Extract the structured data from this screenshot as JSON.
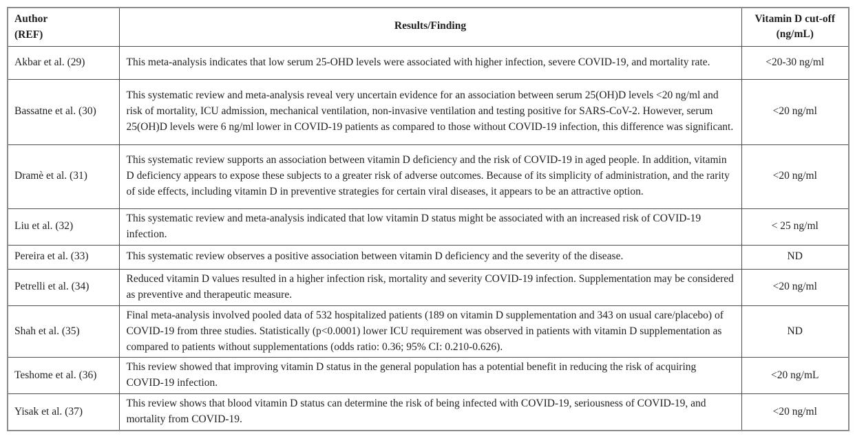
{
  "table": {
    "header": {
      "author_line1": "Author",
      "author_line2": "(REF)",
      "results": "Results/Finding",
      "cutoff_line1": "Vitamin D cut-off",
      "cutoff_line2": "(ng/mL)"
    },
    "rows": [
      {
        "author": "Akbar et al. (29)",
        "finding": "This meta-analysis indicates that low serum 25-OHD levels were associated with higher infection, severe COVID-19, and mortality rate.",
        "cutoff": "<20-30 ng/ml"
      },
      {
        "author": "Bassatne et al. (30)",
        "finding": "This systematic review and meta-analysis reveal very uncertain evidence for an association between serum 25(OH)D levels <20 ng/ml and risk of mortality, ICU admission, mechanical ventilation, non-invasive ventilation and testing positive for SARS-CoV-2. However, serum 25(OH)D levels were 6 ng/ml lower in COVID-19 patients as compared to those without COVID-19 infection, this difference was significant.",
        "cutoff": "<20 ng/ml"
      },
      {
        "author": "Dramè et al. (31)",
        "finding": "This systematic review supports an association between vitamin D deficiency and the risk of COVID-19 in aged people. In addition, vitamin D deficiency appears to expose these subjects to a greater risk of adverse outcomes. Because of its simplicity of administration, and the rarity of side effects, including vitamin D in preventive strategies for certain viral diseases, it appears to be an attractive option.",
        "cutoff": "<20 ng/ml"
      },
      {
        "author": "Liu et al. (32)",
        "finding": "This systematic review and meta-analysis indicated that low vitamin D status might be associated with an increased risk of COVID-19 infection.",
        "cutoff": "< 25 ng/ml"
      },
      {
        "author": "Pereira et al. (33)",
        "finding": "This systematic review observes a positive association between vitamin D deficiency and the severity of the disease.",
        "cutoff": "ND"
      },
      {
        "author": "Petrelli et al. (34)",
        "finding": "Reduced vitamin D values resulted in a higher infection risk, mortality and severity COVID-19 infection. Supplementation may be considered as preventive and therapeutic measure.",
        "cutoff": "<20 ng/ml"
      },
      {
        "author": "Shah et al. (35)",
        "finding": "Final meta-analysis involved pooled data of 532 hospitalized patients (189 on vitamin D supplementation and 343 on usual care/placebo) of COVID-19 from three studies. Statistically (p<0.0001) lower ICU requirement was observed in patients with vitamin D supplementation as compared to patients without supplementations (odds ratio: 0.36; 95% CI: 0.210-0.626).",
        "cutoff": "ND"
      },
      {
        "author": "Teshome et al. (36)",
        "finding": "This review showed that improving vitamin D status in the general population has a potential benefit in reducing the risk of acquiring COVID-19 infection.",
        "cutoff": "<20 ng/mL"
      },
      {
        "author": "Yisak et al. (37)",
        "finding": "This review shows that blood vitamin D status can determine the risk of being infected with COVID-19, seriousness of COVID-19, and mortality from COVID-19.",
        "cutoff": "<20 ng/ml"
      }
    ]
  }
}
